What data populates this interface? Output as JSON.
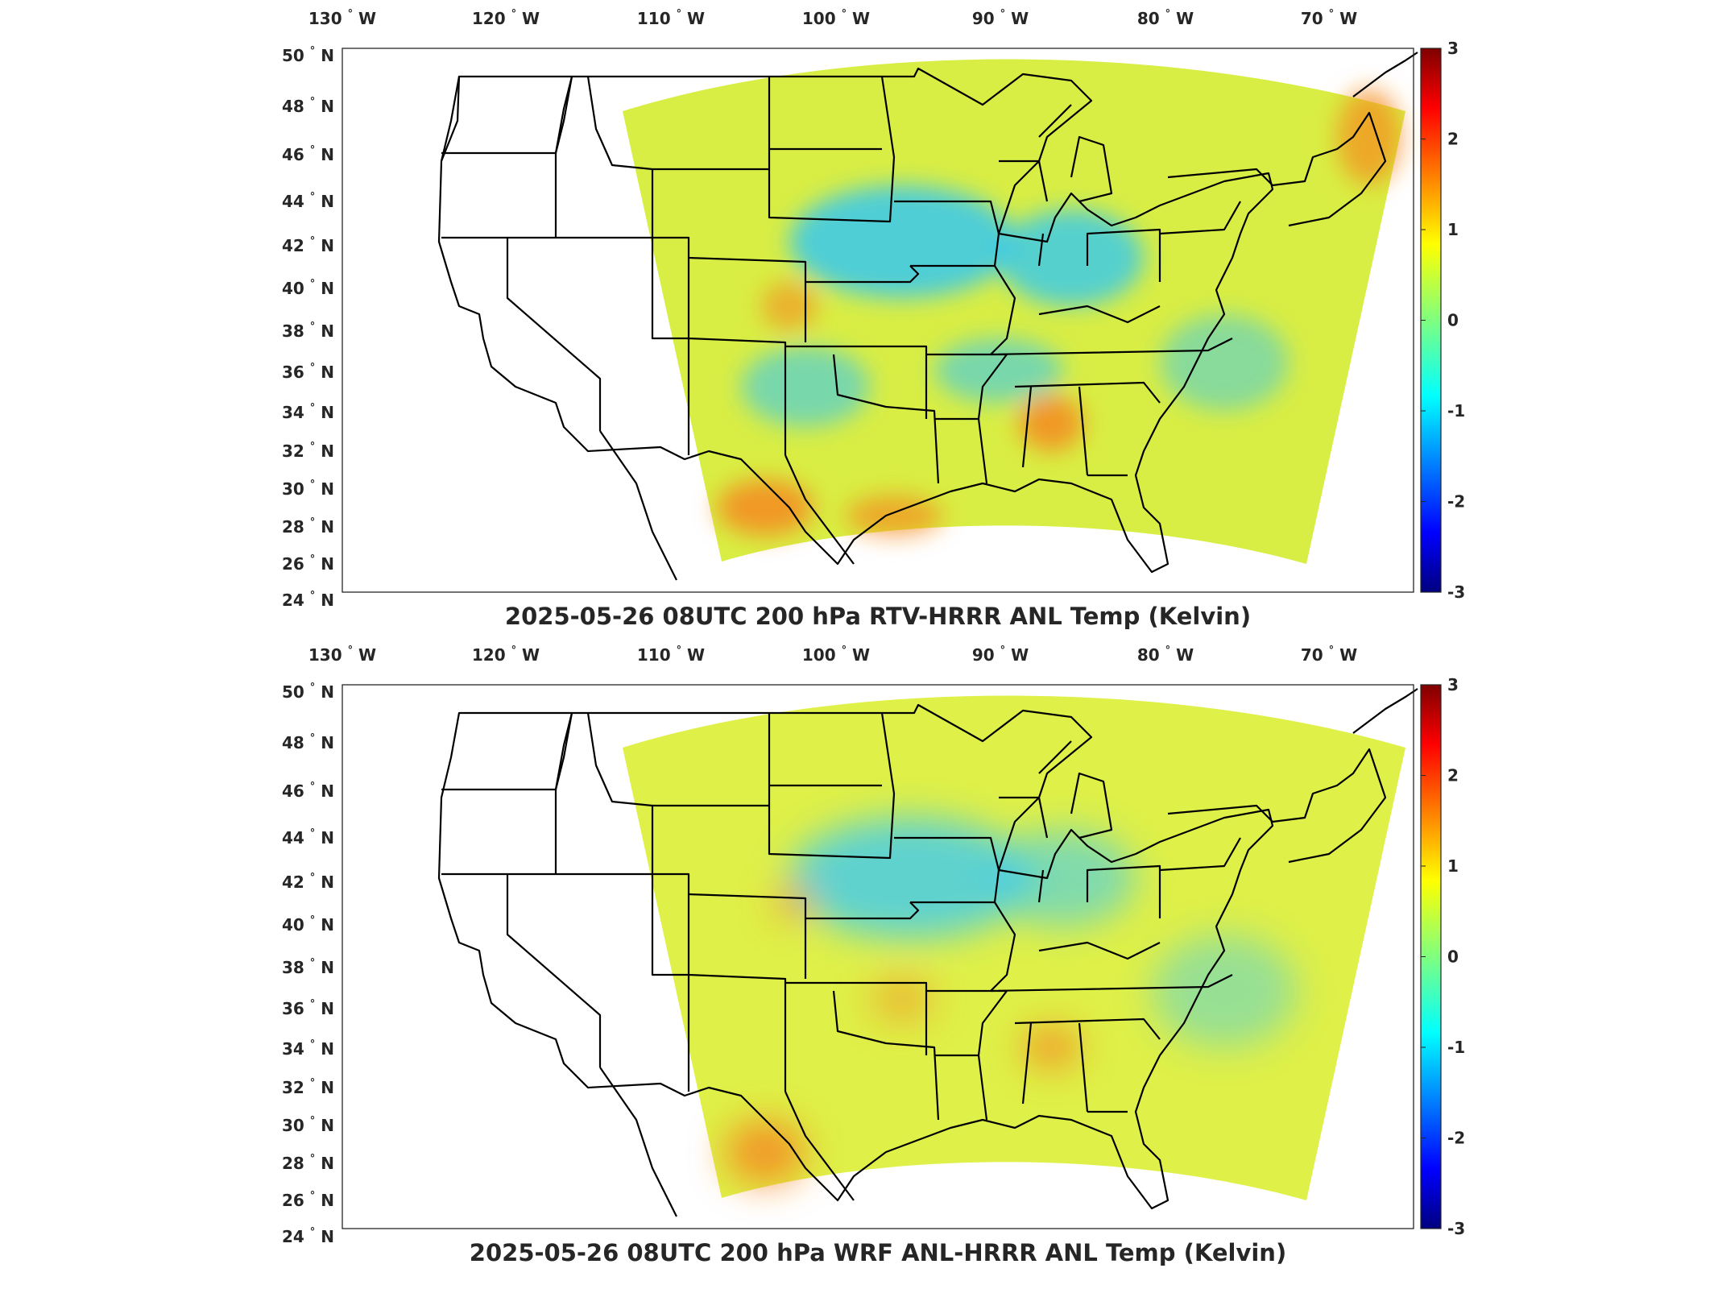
{
  "panels": [
    {
      "title": "2025-05-26 08UTC 200 hPa RTV-HRRR ANL Temp (Kelvin)",
      "field_mean": "mostly green/yellow (0 to +1 K), blue patches over central plains and Midwest, orange patches over Texas and Gulf states, sparse white data gaps",
      "colors": {
        "main": "#d9ee44",
        "cool": "#35c8f0",
        "warm": "#f58a1f"
      }
    },
    {
      "title": "2025-05-26 08UTC 200 hPa WRF ANL-HRRR ANL Temp (Kelvin)",
      "field_mean": "smoother field, mostly yellow-green, blue patches over plains, orange over south Texas and Alabama",
      "colors": {
        "main": "#dff048",
        "cool": "#40cbf0",
        "warm": "#f48a20"
      }
    }
  ],
  "lon_ticks": [
    "130",
    "120",
    "110",
    "100",
    "90",
    "80",
    "70"
  ],
  "lon_suffix": "W",
  "lat_ticks": [
    "50",
    "48",
    "46",
    "44",
    "42",
    "40",
    "38",
    "36",
    "34",
    "32",
    "30",
    "28",
    "26",
    "24"
  ],
  "lat_suffix": "N",
  "degree_symbol": "°",
  "colorbar": {
    "ticks": [
      "3",
      "2",
      "1",
      "0",
      "-1",
      "-2",
      "-3"
    ],
    "min": -3,
    "max": 3,
    "colormap": "jet"
  }
}
